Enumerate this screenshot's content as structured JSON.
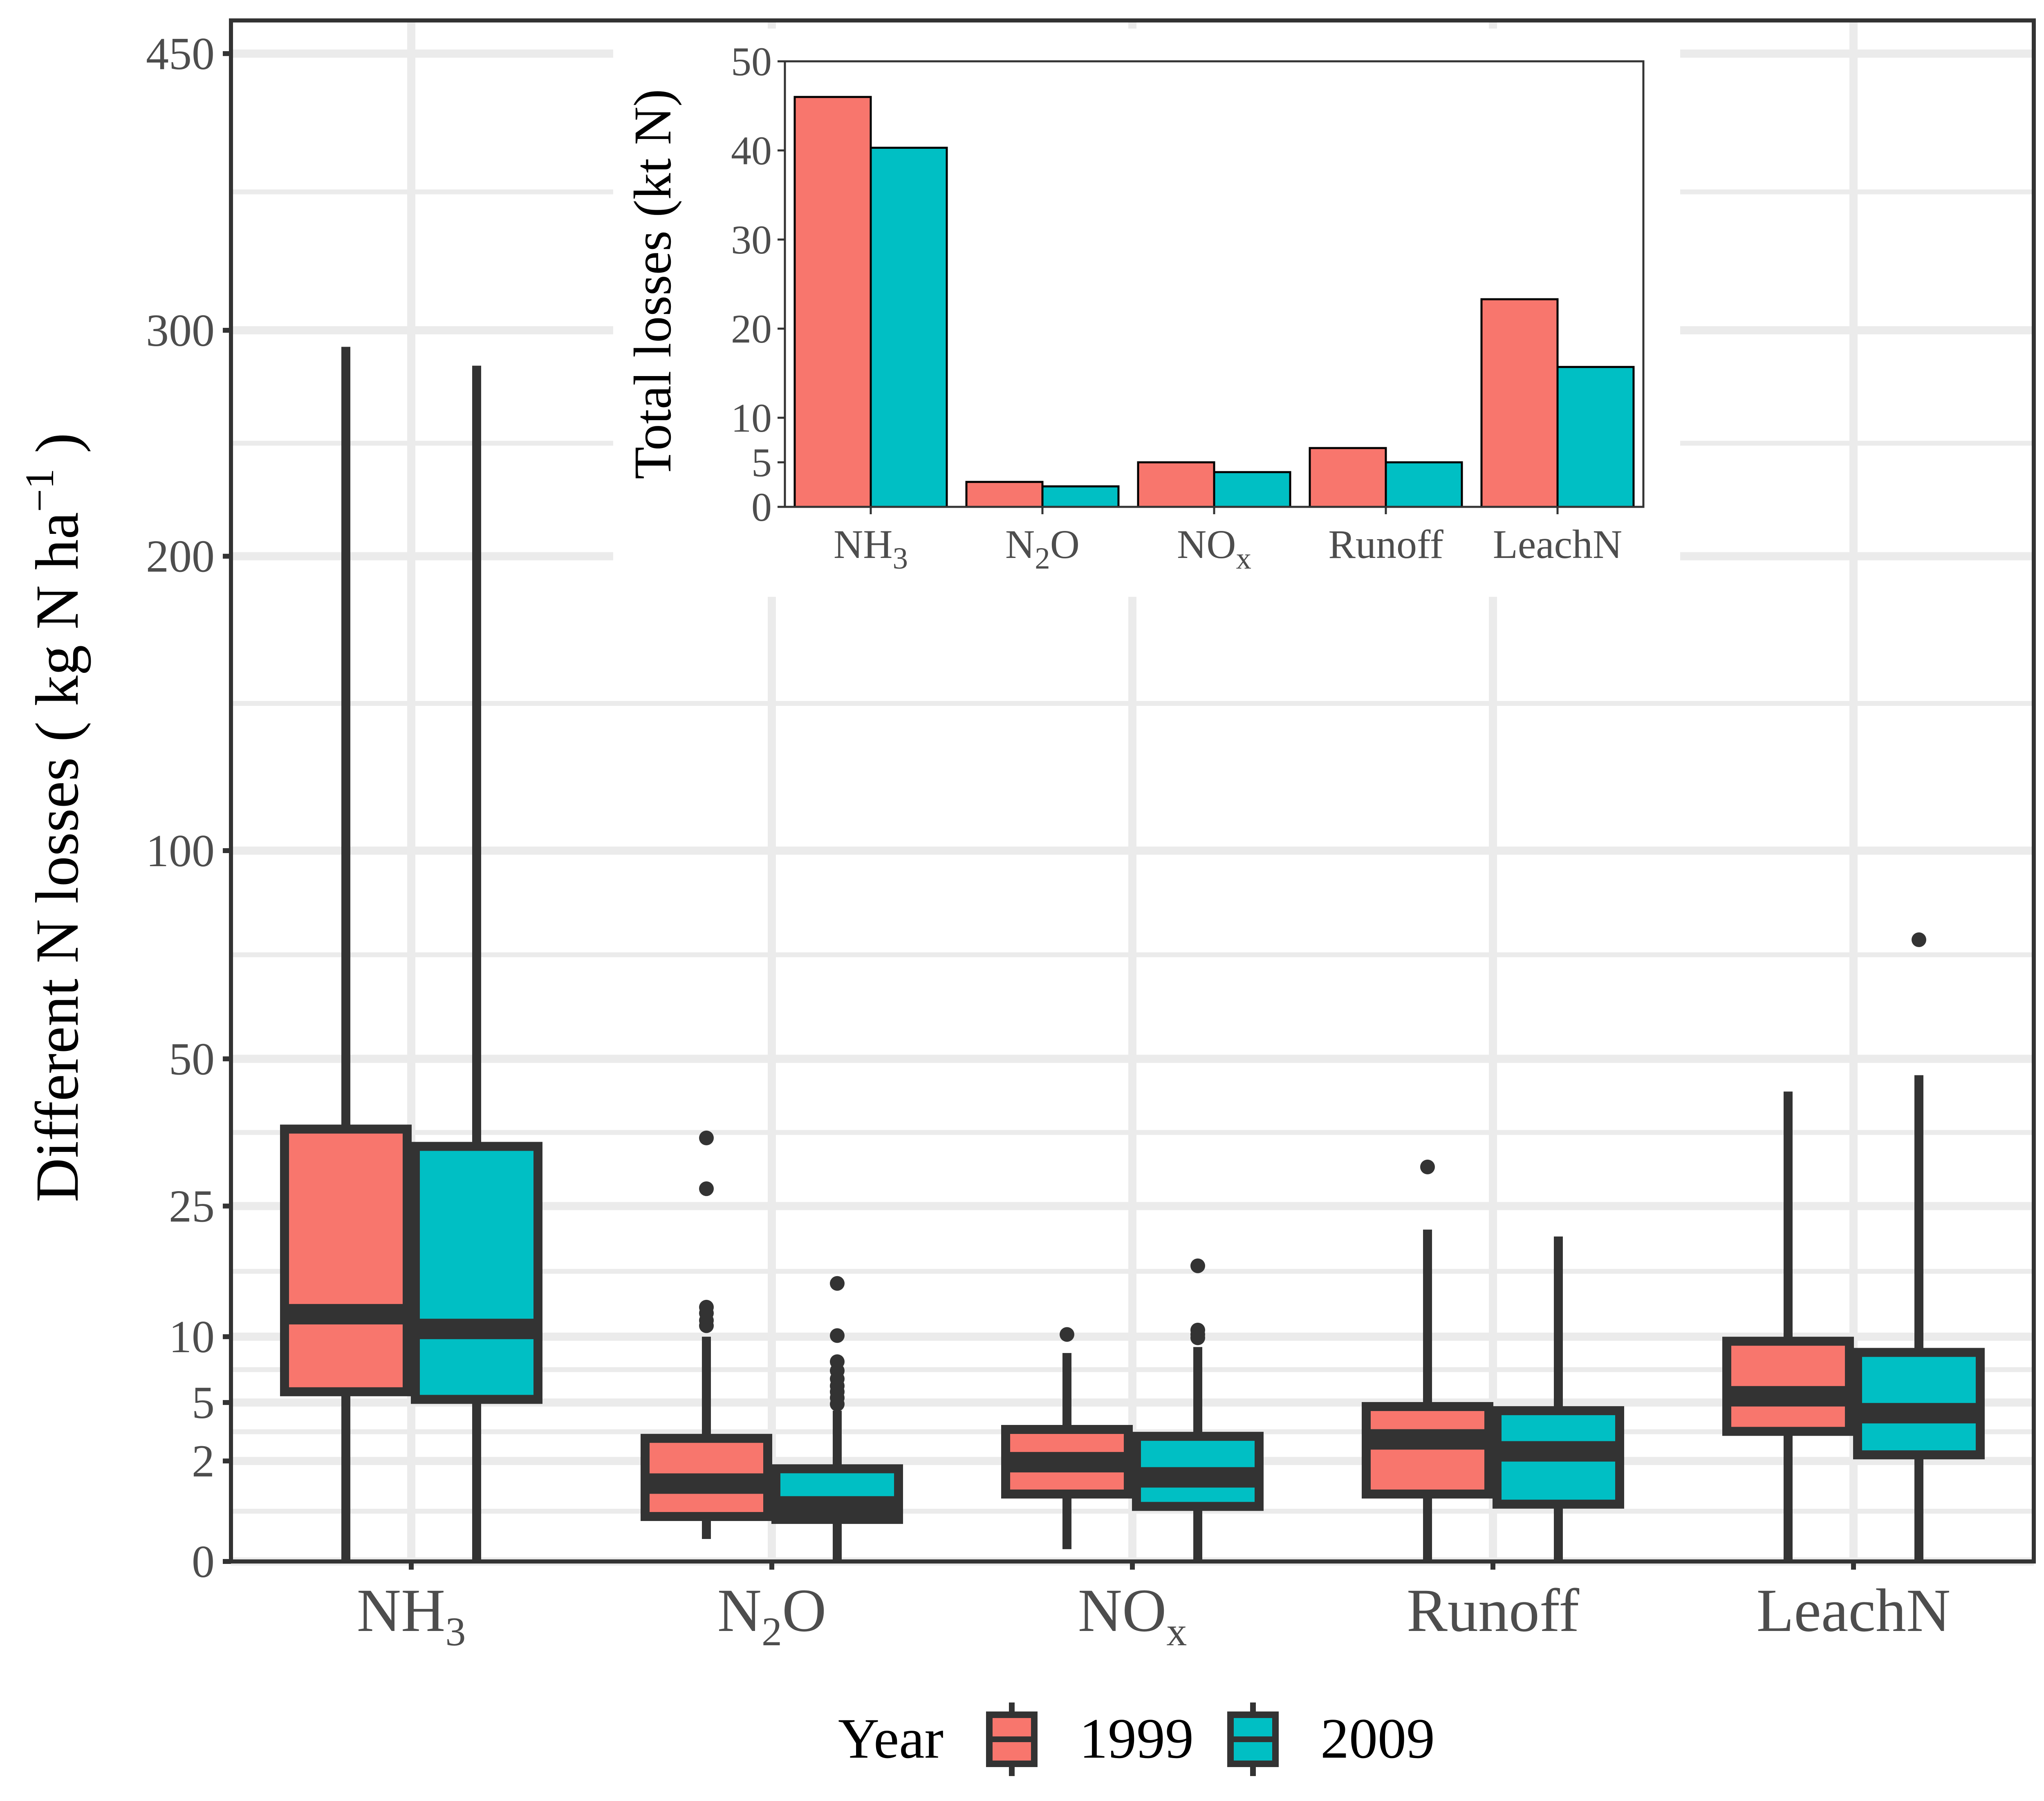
{
  "chart_data": [
    {
      "type": "box",
      "ylabel": "Different N losses ( kg N  ha",
      "ylabel_sup": "−1",
      "ylabel_close": " )",
      "y_scale": "sqrt",
      "ylim": [
        0,
        470
      ],
      "yticks": [
        0,
        2,
        5,
        10,
        25,
        50,
        100,
        200,
        300,
        450
      ],
      "categories": [
        {
          "base": "NH",
          "sub": "3",
          "tail": ""
        },
        {
          "base": "N",
          "sub": "2",
          "tail": "O"
        },
        {
          "base": "NO",
          "sub": "x",
          "tail": ""
        },
        {
          "base": "Runoff",
          "sub": "",
          "tail": ""
        },
        {
          "base": "LeachN",
          "sub": "",
          "tail": ""
        }
      ],
      "legend_title": "Year",
      "legend_position": "bottom",
      "series": [
        {
          "name": "1999",
          "color": "#F8766D",
          "boxes": [
            {
              "low": 0,
              "q1": 5.7,
              "median": 12.1,
              "q3": 37.0,
              "high": 292,
              "outliers": []
            },
            {
              "low": 0.1,
              "q1": 0.4,
              "median": 1.2,
              "q3": 3.0,
              "high": 10.0,
              "outliers": [
                11.0,
                11.5,
                12.2,
                12.8,
                27.5,
                35.5
              ]
            },
            {
              "low": 0.03,
              "q1": 0.9,
              "median": 1.95,
              "q3": 3.45,
              "high": 8.6,
              "outliers": [
                10.2
              ]
            },
            {
              "low": 0,
              "q1": 0.9,
              "median": 2.95,
              "q3": 4.75,
              "high": 21.8,
              "outliers": [
                30.8
              ]
            },
            {
              "low": 0,
              "q1": 3.35,
              "median": 5.4,
              "q3": 9.6,
              "high": 43.7,
              "outliers": []
            }
          ]
        },
        {
          "name": "2009",
          "color": "#00BFC4",
          "boxes": [
            {
              "low": 0,
              "q1": 5.2,
              "median": 10.7,
              "q3": 34.1,
              "high": 283,
              "outliers": []
            },
            {
              "low": 0,
              "q1": 0.35,
              "median": 0.6,
              "q3": 1.7,
              "high": 4.5,
              "outliers": [
                4.9,
                5.3,
                5.7,
                6.1,
                6.6,
                7.2,
                7.9,
                10.1,
                15.3
              ]
            },
            {
              "low": 0,
              "q1": 0.6,
              "median": 1.4,
              "q3": 3.1,
              "high": 9.1,
              "outliers": [
                9.9,
                10.2,
                10.6,
                17.3
              ]
            },
            {
              "low": 0,
              "q1": 0.65,
              "median": 2.4,
              "q3": 4.5,
              "high": 20.9,
              "outliers": []
            },
            {
              "low": 0,
              "q1": 2.25,
              "median": 4.35,
              "q3": 8.65,
              "high": 46.8,
              "outliers": [
                76.5
              ]
            }
          ]
        }
      ]
    },
    {
      "type": "bar",
      "ylabel": "Total losses (kt N)",
      "ylim": [
        0,
        50
      ],
      "yticks": [
        0,
        5,
        10,
        20,
        30,
        40,
        50
      ],
      "categories": [
        {
          "base": "NH",
          "sub": "3",
          "tail": ""
        },
        {
          "base": "N",
          "sub": "2",
          "tail": "O"
        },
        {
          "base": "NO",
          "sub": "x",
          "tail": ""
        },
        {
          "base": "Runoff",
          "sub": "",
          "tail": ""
        },
        {
          "base": "LeachN",
          "sub": "",
          "tail": ""
        }
      ],
      "series": [
        {
          "name": "1999",
          "color": "#F8766D",
          "values": [
            46.0,
            2.8,
            5.0,
            6.6,
            23.3
          ]
        },
        {
          "name": "2009",
          "color": "#00BFC4",
          "values": [
            40.3,
            2.3,
            3.9,
            5.0,
            15.7
          ]
        }
      ]
    }
  ]
}
